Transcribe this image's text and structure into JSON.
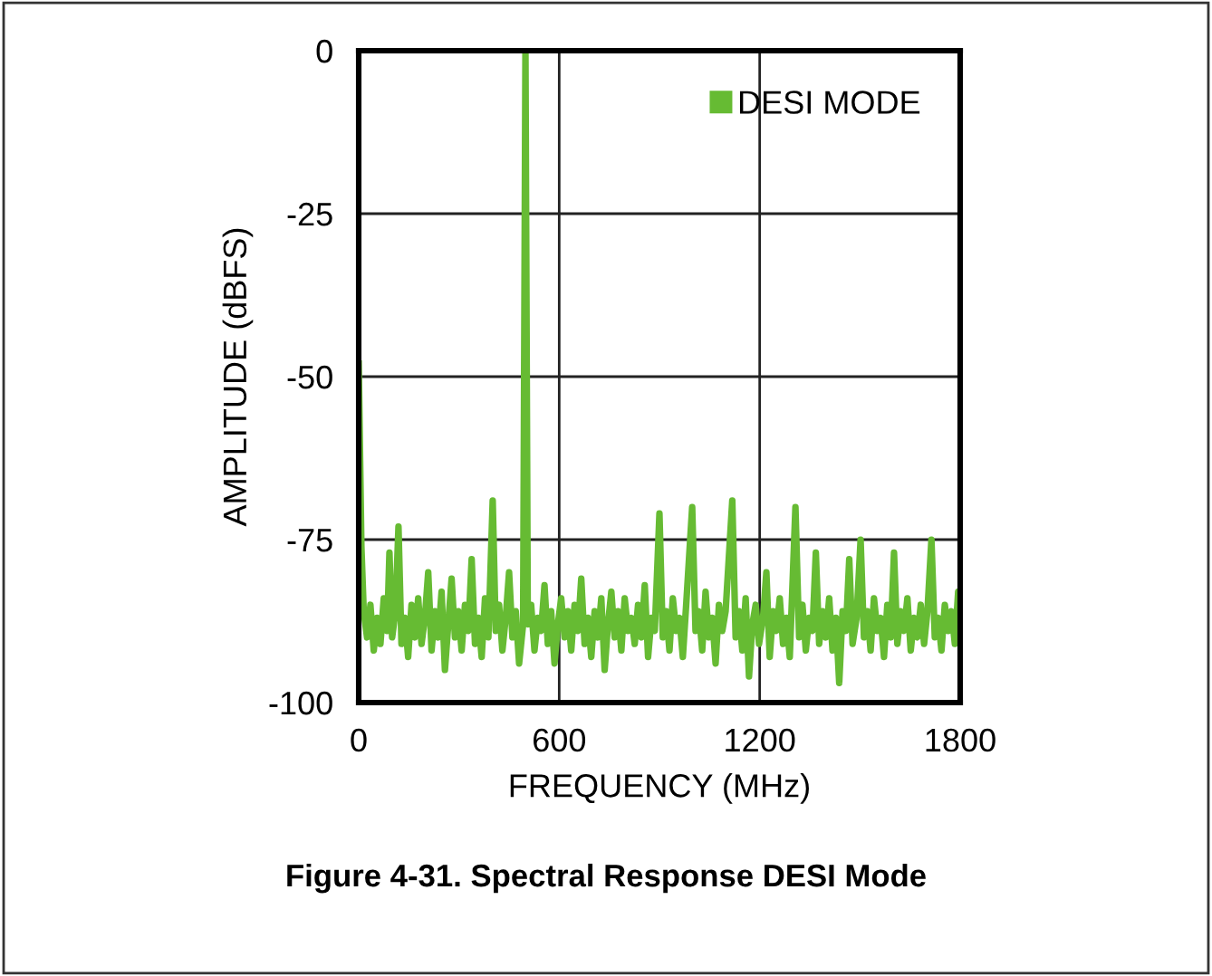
{
  "chart_data": {
    "type": "line",
    "xlabel": "FREQUENCY (MHz)",
    "ylabel": "AMPLITUDE (dBFS)",
    "annotations": [
      "Figure 4-31. Spectral Response DESI Mode"
    ],
    "x": [
      0,
      8,
      15,
      25,
      35,
      45,
      55,
      65,
      75,
      85,
      92,
      100,
      110,
      119,
      128,
      138,
      148,
      158,
      168,
      178,
      188,
      198,
      208,
      218,
      228,
      238,
      248,
      258,
      268,
      278,
      288,
      298,
      308,
      318,
      328,
      338,
      348,
      358,
      368,
      378,
      388,
      401,
      410,
      420,
      430,
      440,
      450,
      460,
      470,
      480,
      492,
      499,
      506,
      516,
      526,
      536,
      546,
      556,
      566,
      576,
      586,
      596,
      606,
      616,
      626,
      636,
      646,
      656,
      666,
      676,
      686,
      696,
      706,
      716,
      726,
      736,
      746,
      756,
      766,
      776,
      786,
      796,
      806,
      816,
      826,
      836,
      846,
      856,
      866,
      876,
      886,
      900,
      910,
      920,
      930,
      940,
      950,
      960,
      970,
      980,
      998,
      1008,
      1018,
      1028,
      1038,
      1048,
      1058,
      1068,
      1078,
      1088,
      1098,
      1118,
      1128,
      1138,
      1148,
      1158,
      1168,
      1178,
      1188,
      1198,
      1210,
      1220,
      1230,
      1240,
      1250,
      1260,
      1270,
      1280,
      1290,
      1307,
      1318,
      1328,
      1338,
      1348,
      1358,
      1368,
      1378,
      1388,
      1398,
      1408,
      1418,
      1428,
      1438,
      1448,
      1458,
      1468,
      1478,
      1490,
      1502,
      1512,
      1522,
      1532,
      1542,
      1552,
      1562,
      1572,
      1582,
      1592,
      1602,
      1612,
      1622,
      1632,
      1642,
      1652,
      1662,
      1672,
      1682,
      1692,
      1702,
      1714,
      1724,
      1734,
      1744,
      1754,
      1764,
      1774,
      1784,
      1794,
      1800
    ],
    "series": [
      {
        "name": "DESI MODE",
        "color": "#66bb33",
        "values": [
          -48,
          -76,
          -86,
          -90,
          -85,
          -92,
          -87,
          -91,
          -84,
          -89,
          -77,
          -90,
          -86,
          -73,
          -91,
          -87,
          -93,
          -85,
          -90,
          -84,
          -91,
          -87,
          -80,
          -92,
          -86,
          -90,
          -83,
          -95,
          -88,
          -81,
          -90,
          -86,
          -92,
          -85,
          -89,
          -78,
          -91,
          -87,
          -93,
          -84,
          -90,
          -69,
          -89,
          -85,
          -92,
          -87,
          -80,
          -90,
          -86,
          -94,
          -88,
          0,
          -88,
          -85,
          -92,
          -87,
          -89,
          -82,
          -91,
          -86,
          -94,
          -88,
          -84,
          -90,
          -86,
          -92,
          -85,
          -89,
          -81,
          -91,
          -87,
          -93,
          -86,
          -90,
          -84,
          -95,
          -88,
          -83,
          -90,
          -86,
          -92,
          -84,
          -89,
          -87,
          -91,
          -85,
          -90,
          -82,
          -93,
          -87,
          -89,
          -71,
          -90,
          -86,
          -92,
          -84,
          -89,
          -87,
          -93,
          -85,
          -70,
          -89,
          -86,
          -92,
          -83,
          -90,
          -87,
          -94,
          -85,
          -89,
          -86,
          -69,
          -90,
          -86,
          -92,
          -84,
          -96,
          -88,
          -85,
          -91,
          -87,
          -80,
          -93,
          -86,
          -89,
          -84,
          -91,
          -87,
          -93,
          -70,
          -90,
          -85,
          -92,
          -87,
          -89,
          -77,
          -91,
          -86,
          -90,
          -84,
          -92,
          -87,
          -97,
          -86,
          -89,
          -78,
          -91,
          -87,
          -75,
          -90,
          -86,
          -92,
          -84,
          -89,
          -87,
          -93,
          -85,
          -90,
          -77,
          -91,
          -86,
          -89,
          -84,
          -92,
          -87,
          -90,
          -85,
          -91,
          -86,
          -75,
          -90,
          -87,
          -92,
          -85,
          -89,
          -86,
          -91,
          -83,
          -88
        ]
      }
    ],
    "xlim": [
      0,
      1800
    ],
    "xticks": [
      0,
      600,
      1200,
      1800
    ],
    "ylim": [
      -100,
      0
    ],
    "yticks": [
      -100,
      -75,
      -50,
      -25,
      0
    ],
    "grid": true,
    "legend": "top right",
    "marker": "none",
    "line_style": "solid"
  }
}
